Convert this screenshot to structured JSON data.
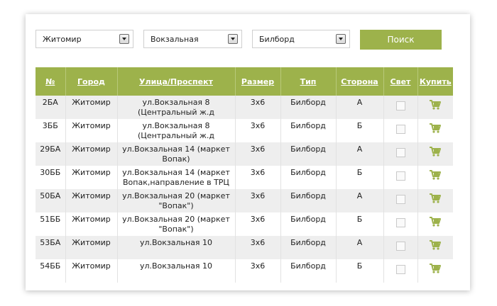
{
  "filters": {
    "city": "Житомир",
    "street": "Вокзальная",
    "type": "Билборд",
    "search_label": "Поиск"
  },
  "colors": {
    "accent": "#9db24b"
  },
  "table": {
    "headers": [
      "№",
      "Город",
      "Улица/Проспект",
      "Размер",
      "Тип",
      "Сторона",
      "Свет",
      "Купить"
    ],
    "rows": [
      {
        "num": "2БА",
        "city": "Житомир",
        "street": "ул.Вокзальная 8 (Центральный ж.д",
        "size": "3х6",
        "type": "Билборд",
        "side": "А",
        "light": false,
        "buy_icon": "cart-icon"
      },
      {
        "num": "3ББ",
        "city": "Житомир",
        "street": "ул.Вокзальная 8 (Центральный ж.д",
        "size": "3х6",
        "type": "Билборд",
        "side": "Б",
        "light": false,
        "buy_icon": "cart-icon"
      },
      {
        "num": "29БА",
        "city": "Житомир",
        "street": "ул.Вокзальная 14 (маркет Вопак)",
        "size": "3х6",
        "type": "Билборд",
        "side": "А",
        "light": false,
        "buy_icon": "cart-icon"
      },
      {
        "num": "30ББ",
        "city": "Житомир",
        "street": "ул.Вокзальная 14 (маркет Вопак,направление в ТРЦ",
        "size": "3х6",
        "type": "Билборд",
        "side": "Б",
        "light": false,
        "buy_icon": "cart-icon"
      },
      {
        "num": "50БА",
        "city": "Житомир",
        "street": "ул.Вокзальная 20 (маркет \"Вопак\")",
        "size": "3х6",
        "type": "Билборд",
        "side": "А",
        "light": false,
        "buy_icon": "cart-icon"
      },
      {
        "num": "51ББ",
        "city": "Житомир",
        "street": "ул.Вокзальная 20 (маркет \"Вопак\")",
        "size": "3х6",
        "type": "Билборд",
        "side": "Б",
        "light": false,
        "buy_icon": "cart-icon"
      },
      {
        "num": "53БА",
        "city": "Житомир",
        "street": "ул.Вокзальная 10",
        "size": "3х6",
        "type": "Билборд",
        "side": "А",
        "light": false,
        "buy_icon": "cart-icon"
      },
      {
        "num": "54ББ",
        "city": "Житомир",
        "street": "ул.Вокзальная 10",
        "size": "3х6",
        "type": "Билборд",
        "side": "Б",
        "light": false,
        "buy_icon": "cart-icon"
      }
    ]
  }
}
